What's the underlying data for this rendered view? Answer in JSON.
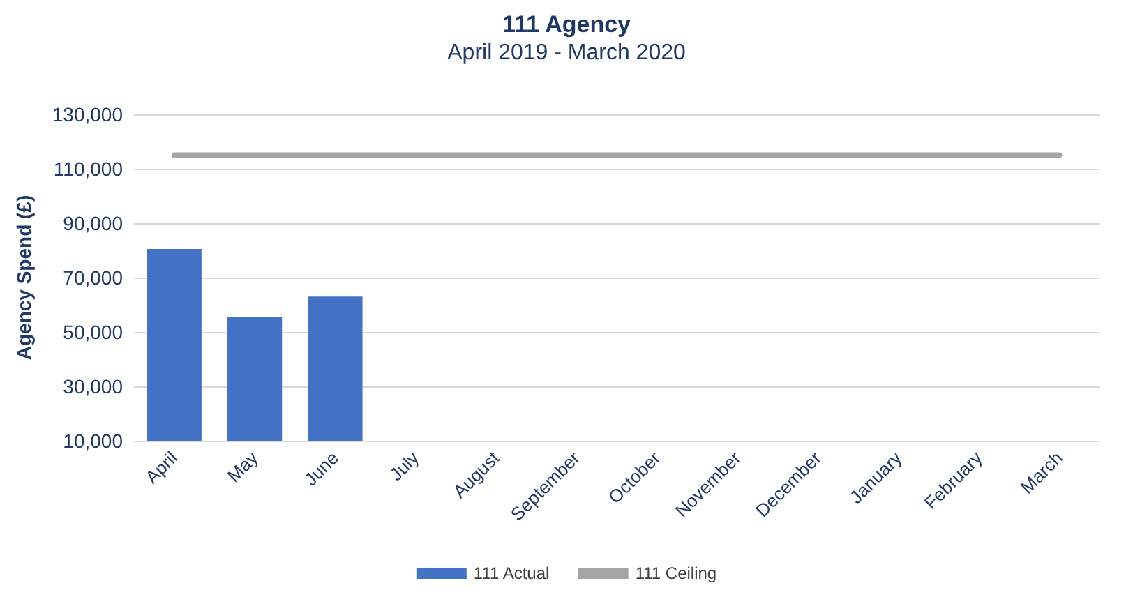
{
  "chart_data": {
    "type": "bar",
    "title": "111 Agency",
    "subtitle": "April 2019 - March 2020",
    "ylabel": "Agency Spend (£)",
    "categories": [
      "April",
      "May",
      "June",
      "July",
      "August",
      "September",
      "October",
      "November",
      "December",
      "January",
      "February",
      "March"
    ],
    "series": [
      {
        "name": "111 Actual",
        "color": "#4472c4",
        "values": [
          80500,
          55500,
          63000,
          null,
          null,
          null,
          null,
          null,
          null,
          null,
          null,
          null
        ]
      },
      {
        "name": "111 Ceiling",
        "type": "line",
        "color": "#a5a5a5",
        "values": [
          115000,
          115000,
          115000,
          115000,
          115000,
          115000,
          115000,
          115000,
          115000,
          115000,
          115000,
          115000
        ]
      }
    ],
    "ylim": [
      10000,
      130000
    ],
    "yticks": [
      {
        "value": 10000,
        "label": "10,000"
      },
      {
        "value": 30000,
        "label": "30,000"
      },
      {
        "value": 50000,
        "label": "50,000"
      },
      {
        "value": 70000,
        "label": "70,000"
      },
      {
        "value": 90000,
        "label": "90,000"
      },
      {
        "value": 110000,
        "label": "110,000"
      },
      {
        "value": 130000,
        "label": "130,000"
      }
    ],
    "grid": "y",
    "legend": "bottom",
    "marker": "none"
  }
}
